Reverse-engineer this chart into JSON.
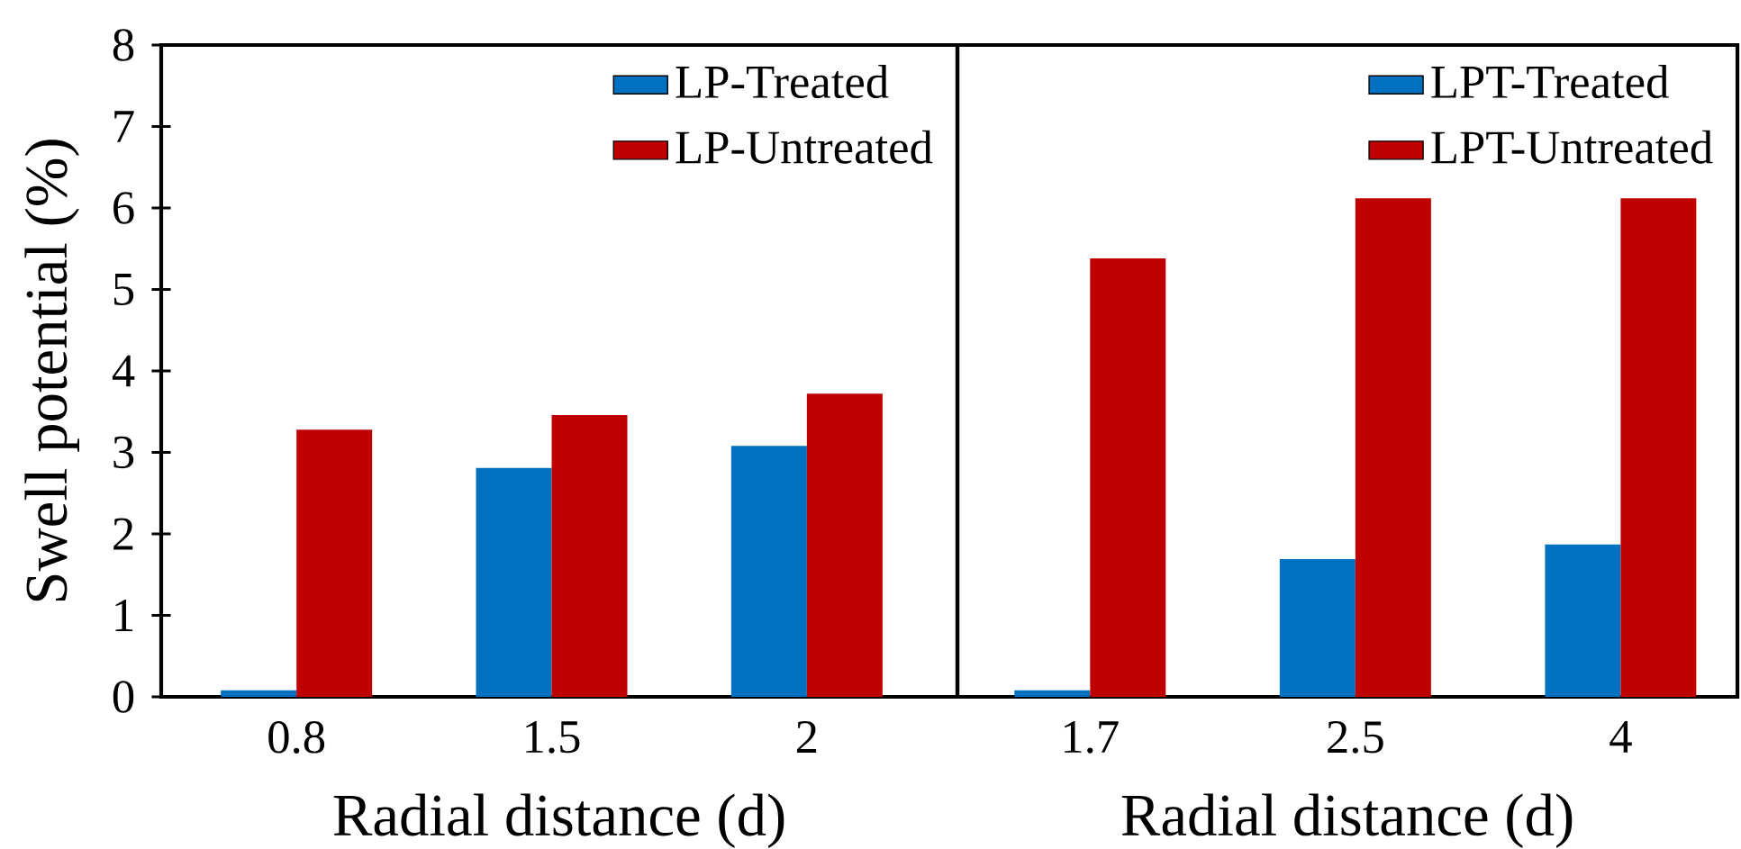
{
  "chart_data": [
    {
      "type": "bar",
      "xlabel": "Radial distance (d)",
      "ylabel": "Swell potential (%)",
      "categories": [
        "0.8",
        "1.5",
        "2"
      ],
      "ylim": [
        0,
        8
      ],
      "yticks": [
        0,
        1,
        2,
        3,
        4,
        5,
        6,
        7,
        8
      ],
      "grid": false,
      "legend": "top right",
      "series": [
        {
          "name": "LP-Treated",
          "color": "#0070c0",
          "values": [
            0.08,
            2.81,
            3.08
          ]
        },
        {
          "name": "LP-Untreated",
          "color": "#c00000",
          "values": [
            3.28,
            3.46,
            3.72
          ]
        }
      ]
    },
    {
      "type": "bar",
      "xlabel": "Radial distance (d)",
      "categories": [
        "1.7",
        "2.5",
        "4"
      ],
      "ylim": [
        0,
        8
      ],
      "yticks": [
        0,
        1,
        2,
        3,
        4,
        5,
        6,
        7,
        8
      ],
      "grid": false,
      "legend": "top right",
      "tick_labels": "x",
      "series": [
        {
          "name": "LPT-Treated",
          "color": "#0070c0",
          "values": [
            0.08,
            1.69,
            1.87
          ]
        },
        {
          "name": "LPT-Untreated",
          "color": "#c00000",
          "values": [
            5.38,
            6.12,
            6.12
          ]
        }
      ]
    }
  ]
}
